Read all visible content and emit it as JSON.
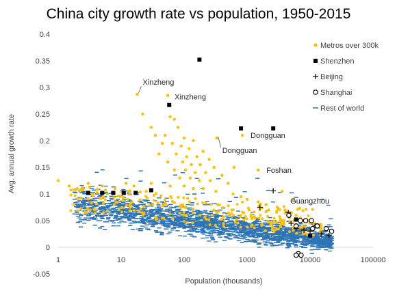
{
  "chart_data": {
    "type": "scatter",
    "title": "China city growth rate vs population, 1950-2015",
    "xlabel": "Population (thousands)",
    "ylabel": "Avg. annual growth rate",
    "x_scale": "log",
    "xlim": [
      1,
      100000
    ],
    "ylim": [
      -0.05,
      0.4
    ],
    "x_ticks": [
      "1",
      "10",
      "100",
      "1000",
      "10000",
      "100000"
    ],
    "x_tick_values": [
      1,
      10,
      100,
      1000,
      10000,
      100000
    ],
    "y_ticks": [
      "-0.05",
      "0",
      "0.05",
      "0.1",
      "0.15",
      "0.2",
      "0.25",
      "0.3",
      "0.35",
      "0.4"
    ],
    "y_tick_values": [
      -0.05,
      0,
      0.05,
      0.1,
      0.15,
      0.2,
      0.25,
      0.3,
      0.35,
      0.4
    ],
    "grid": false,
    "legend_position": "right",
    "series": [
      {
        "name": "Metros over 300k",
        "marker": "dot",
        "color": "#FFC000",
        "points": [
          [
            18,
            0.287
          ],
          [
            55,
            0.285
          ],
          [
            22,
            0.25
          ],
          [
            60,
            0.245
          ],
          [
            70,
            0.24
          ],
          [
            30,
            0.225
          ],
          [
            80,
            0.225
          ],
          [
            35,
            0.21
          ],
          [
            50,
            0.21
          ],
          [
            100,
            0.205
          ],
          [
            140,
            0.2
          ],
          [
            45,
            0.195
          ],
          [
            65,
            0.195
          ],
          [
            90,
            0.19
          ],
          [
            120,
            0.185
          ],
          [
            200,
            0.18
          ],
          [
            40,
            0.175
          ],
          [
            75,
            0.175
          ],
          [
            110,
            0.17
          ],
          [
            160,
            0.17
          ],
          [
            250,
            0.165
          ],
          [
            55,
            0.16
          ],
          [
            95,
            0.16
          ],
          [
            130,
            0.155
          ],
          [
            180,
            0.155
          ],
          [
            300,
            0.15
          ],
          [
            70,
            0.145
          ],
          [
            105,
            0.145
          ],
          [
            150,
            0.14
          ],
          [
            220,
            0.14
          ],
          [
            400,
            0.135
          ],
          [
            85,
            0.13
          ],
          [
            125,
            0.13
          ],
          [
            175,
            0.125
          ],
          [
            260,
            0.125
          ],
          [
            500,
            0.12
          ],
          [
            30,
            0.12
          ],
          [
            60,
            0.115
          ],
          [
            100,
            0.115
          ],
          [
            140,
            0.11
          ],
          [
            200,
            0.11
          ],
          [
            320,
            0.105
          ],
          [
            600,
            0.1
          ],
          [
            800,
            0.095
          ],
          [
            1000,
            0.09
          ],
          [
            1500,
            0.085
          ],
          [
            2000,
            0.08
          ],
          [
            3000,
            0.075
          ],
          [
            4000,
            0.07
          ],
          [
            5000,
            0.065
          ],
          [
            6000,
            0.06
          ],
          [
            7000,
            0.055
          ],
          [
            8000,
            0.05
          ],
          [
            9000,
            0.048
          ],
          [
            10000,
            0.045
          ],
          [
            12000,
            0.04
          ],
          [
            15000,
            0.035
          ],
          [
            1,
            0.125
          ],
          [
            1.5,
            0.115
          ],
          [
            2,
            0.11
          ],
          [
            3,
            0.12
          ],
          [
            3.5,
            0.1
          ],
          [
            5,
            0.115
          ],
          [
            6,
            0.1
          ],
          [
            8,
            0.11
          ],
          [
            12,
            0.12
          ],
          [
            16,
            0.115
          ],
          [
            25,
            0.105
          ],
          [
            840,
            0.21
          ],
          [
            330,
            0.205
          ],
          [
            620,
            0.15
          ],
          [
            1500,
            0.145
          ],
          [
            3600,
            0.105
          ],
          [
            5500,
            0.09
          ],
          [
            2200,
            0.07
          ],
          [
            4500,
            0.06
          ],
          [
            1200,
            0.055
          ],
          [
            2500,
            0.045
          ]
        ]
      },
      {
        "name": "Shenzhen",
        "marker": "square",
        "color": "#000000",
        "points": [
          [
            3,
            0.102
          ],
          [
            5,
            0.102
          ],
          [
            7.5,
            0.102
          ],
          [
            11,
            0.102
          ],
          [
            17,
            0.102
          ],
          [
            30,
            0.107
          ],
          [
            58,
            0.267
          ],
          [
            175,
            0.352
          ],
          [
            800,
            0.223
          ],
          [
            2600,
            0.223
          ],
          [
            6000,
            0.052
          ],
          [
            10000,
            0.022
          ]
        ]
      },
      {
        "name": "Beijing",
        "marker": "plus",
        "color": "#000000",
        "points": [
          [
            2600,
            0.106
          ],
          [
            1600,
            0.075
          ],
          [
            4500,
            0.065
          ],
          [
            5000,
            0.045
          ],
          [
            6000,
            0.035
          ],
          [
            8000,
            0.032
          ],
          [
            10000,
            0.03
          ],
          [
            12000,
            0.04
          ],
          [
            15000,
            0.025
          ],
          [
            20000,
            0.022
          ]
        ]
      },
      {
        "name": "Shanghai",
        "marker": "circle",
        "color": "#000000",
        "points": [
          [
            4600,
            0.06
          ],
          [
            6000,
            0.04
          ],
          [
            7000,
            0.05
          ],
          [
            8500,
            0.05
          ],
          [
            10500,
            0.05
          ],
          [
            13000,
            0.04
          ],
          [
            11000,
            0.035
          ],
          [
            18000,
            0.035
          ],
          [
            22000,
            0.03
          ],
          [
            6500,
            -0.012
          ],
          [
            7200,
            -0.015
          ],
          [
            6000,
            -0.015
          ]
        ]
      },
      {
        "name": "Rest of world",
        "marker": "dash",
        "color": "#2E75B6",
        "cloud": true
      }
    ],
    "annotations": [
      {
        "text": "Xinzheng",
        "x": 18,
        "y": 0.287
      },
      {
        "text": "Xinzheng",
        "x": 55,
        "y": 0.285
      },
      {
        "text": "Dongguan",
        "x": 840,
        "y": 0.21
      },
      {
        "text": "Dongguan",
        "x": 330,
        "y": 0.205
      },
      {
        "text": "Foshan",
        "x": 1500,
        "y": 0.145
      },
      {
        "text": "Guangzhou",
        "x": 3600,
        "y": 0.09
      }
    ]
  }
}
